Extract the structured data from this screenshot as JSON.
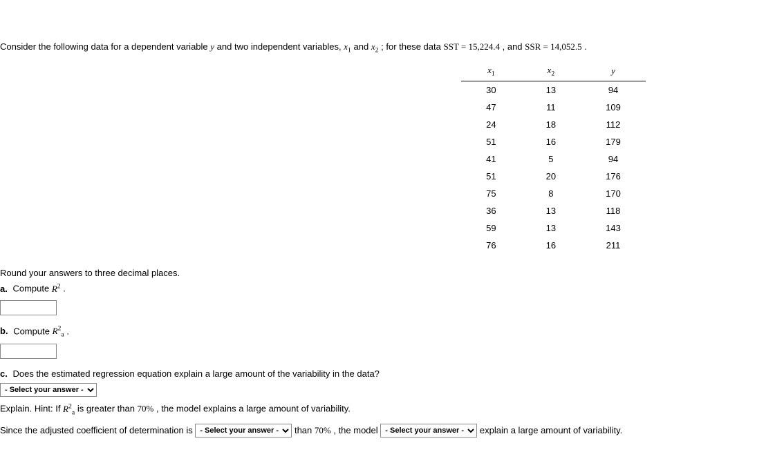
{
  "intro": {
    "prefix": "Consider the following data for a dependent variable ",
    "y_var": "y",
    "mid1": " and two independent variables, ",
    "x1_var": "x",
    "x1_sub": "1",
    "mid2": " and ",
    "x2_var": "x",
    "x2_sub": "2",
    "mid3": " ; for these data ",
    "sst_label": "SST",
    "sst_eq": " = ",
    "sst_val": "15,224.4",
    "mid4": " , and ",
    "ssr_label": "SSR",
    "ssr_eq": " = ",
    "ssr_val": "14,052.5",
    "period": " ."
  },
  "table": {
    "headers": {
      "x1": "x",
      "x1_sub": "1",
      "x2": "x",
      "x2_sub": "2",
      "y": "y"
    },
    "rows": [
      {
        "x1": "30",
        "x2": "13",
        "y": "94"
      },
      {
        "x1": "47",
        "x2": "11",
        "y": "109"
      },
      {
        "x1": "24",
        "x2": "18",
        "y": "112"
      },
      {
        "x1": "51",
        "x2": "16",
        "y": "179"
      },
      {
        "x1": "41",
        "x2": "5",
        "y": "94"
      },
      {
        "x1": "51",
        "x2": "20",
        "y": "176"
      },
      {
        "x1": "75",
        "x2": "8",
        "y": "170"
      },
      {
        "x1": "36",
        "x2": "13",
        "y": "118"
      },
      {
        "x1": "59",
        "x2": "13",
        "y": "143"
      },
      {
        "x1": "76",
        "x2": "16",
        "y": "211"
      }
    ]
  },
  "rounding": "Round your answers to three decimal places.",
  "partA": {
    "label": "a.",
    "text_pre": " Compute ",
    "R": "R",
    "sup": "2",
    "period": " ."
  },
  "partB": {
    "label": "b.",
    "text_pre": " Compute ",
    "R": "R",
    "sup": "2",
    "sub": "a",
    "period": " ."
  },
  "partC": {
    "label": "c.",
    "question": " Does the estimated regression equation explain a large amount of the variability in the data?"
  },
  "select_placeholder": "- Select your answer -",
  "explain": {
    "prefix": "Explain. Hint: If ",
    "R": "R",
    "sup": "2",
    "sub": "a",
    "mid": " is greater than ",
    "threshold": "70%",
    "suffix": ", the model explains a large amount of variability."
  },
  "since": {
    "prefix": "Since the adjusted coefficient of determination is ",
    "mid1": " than ",
    "threshold": "70%",
    "mid2": ", the model ",
    "suffix": " explain a large amount of variability."
  }
}
